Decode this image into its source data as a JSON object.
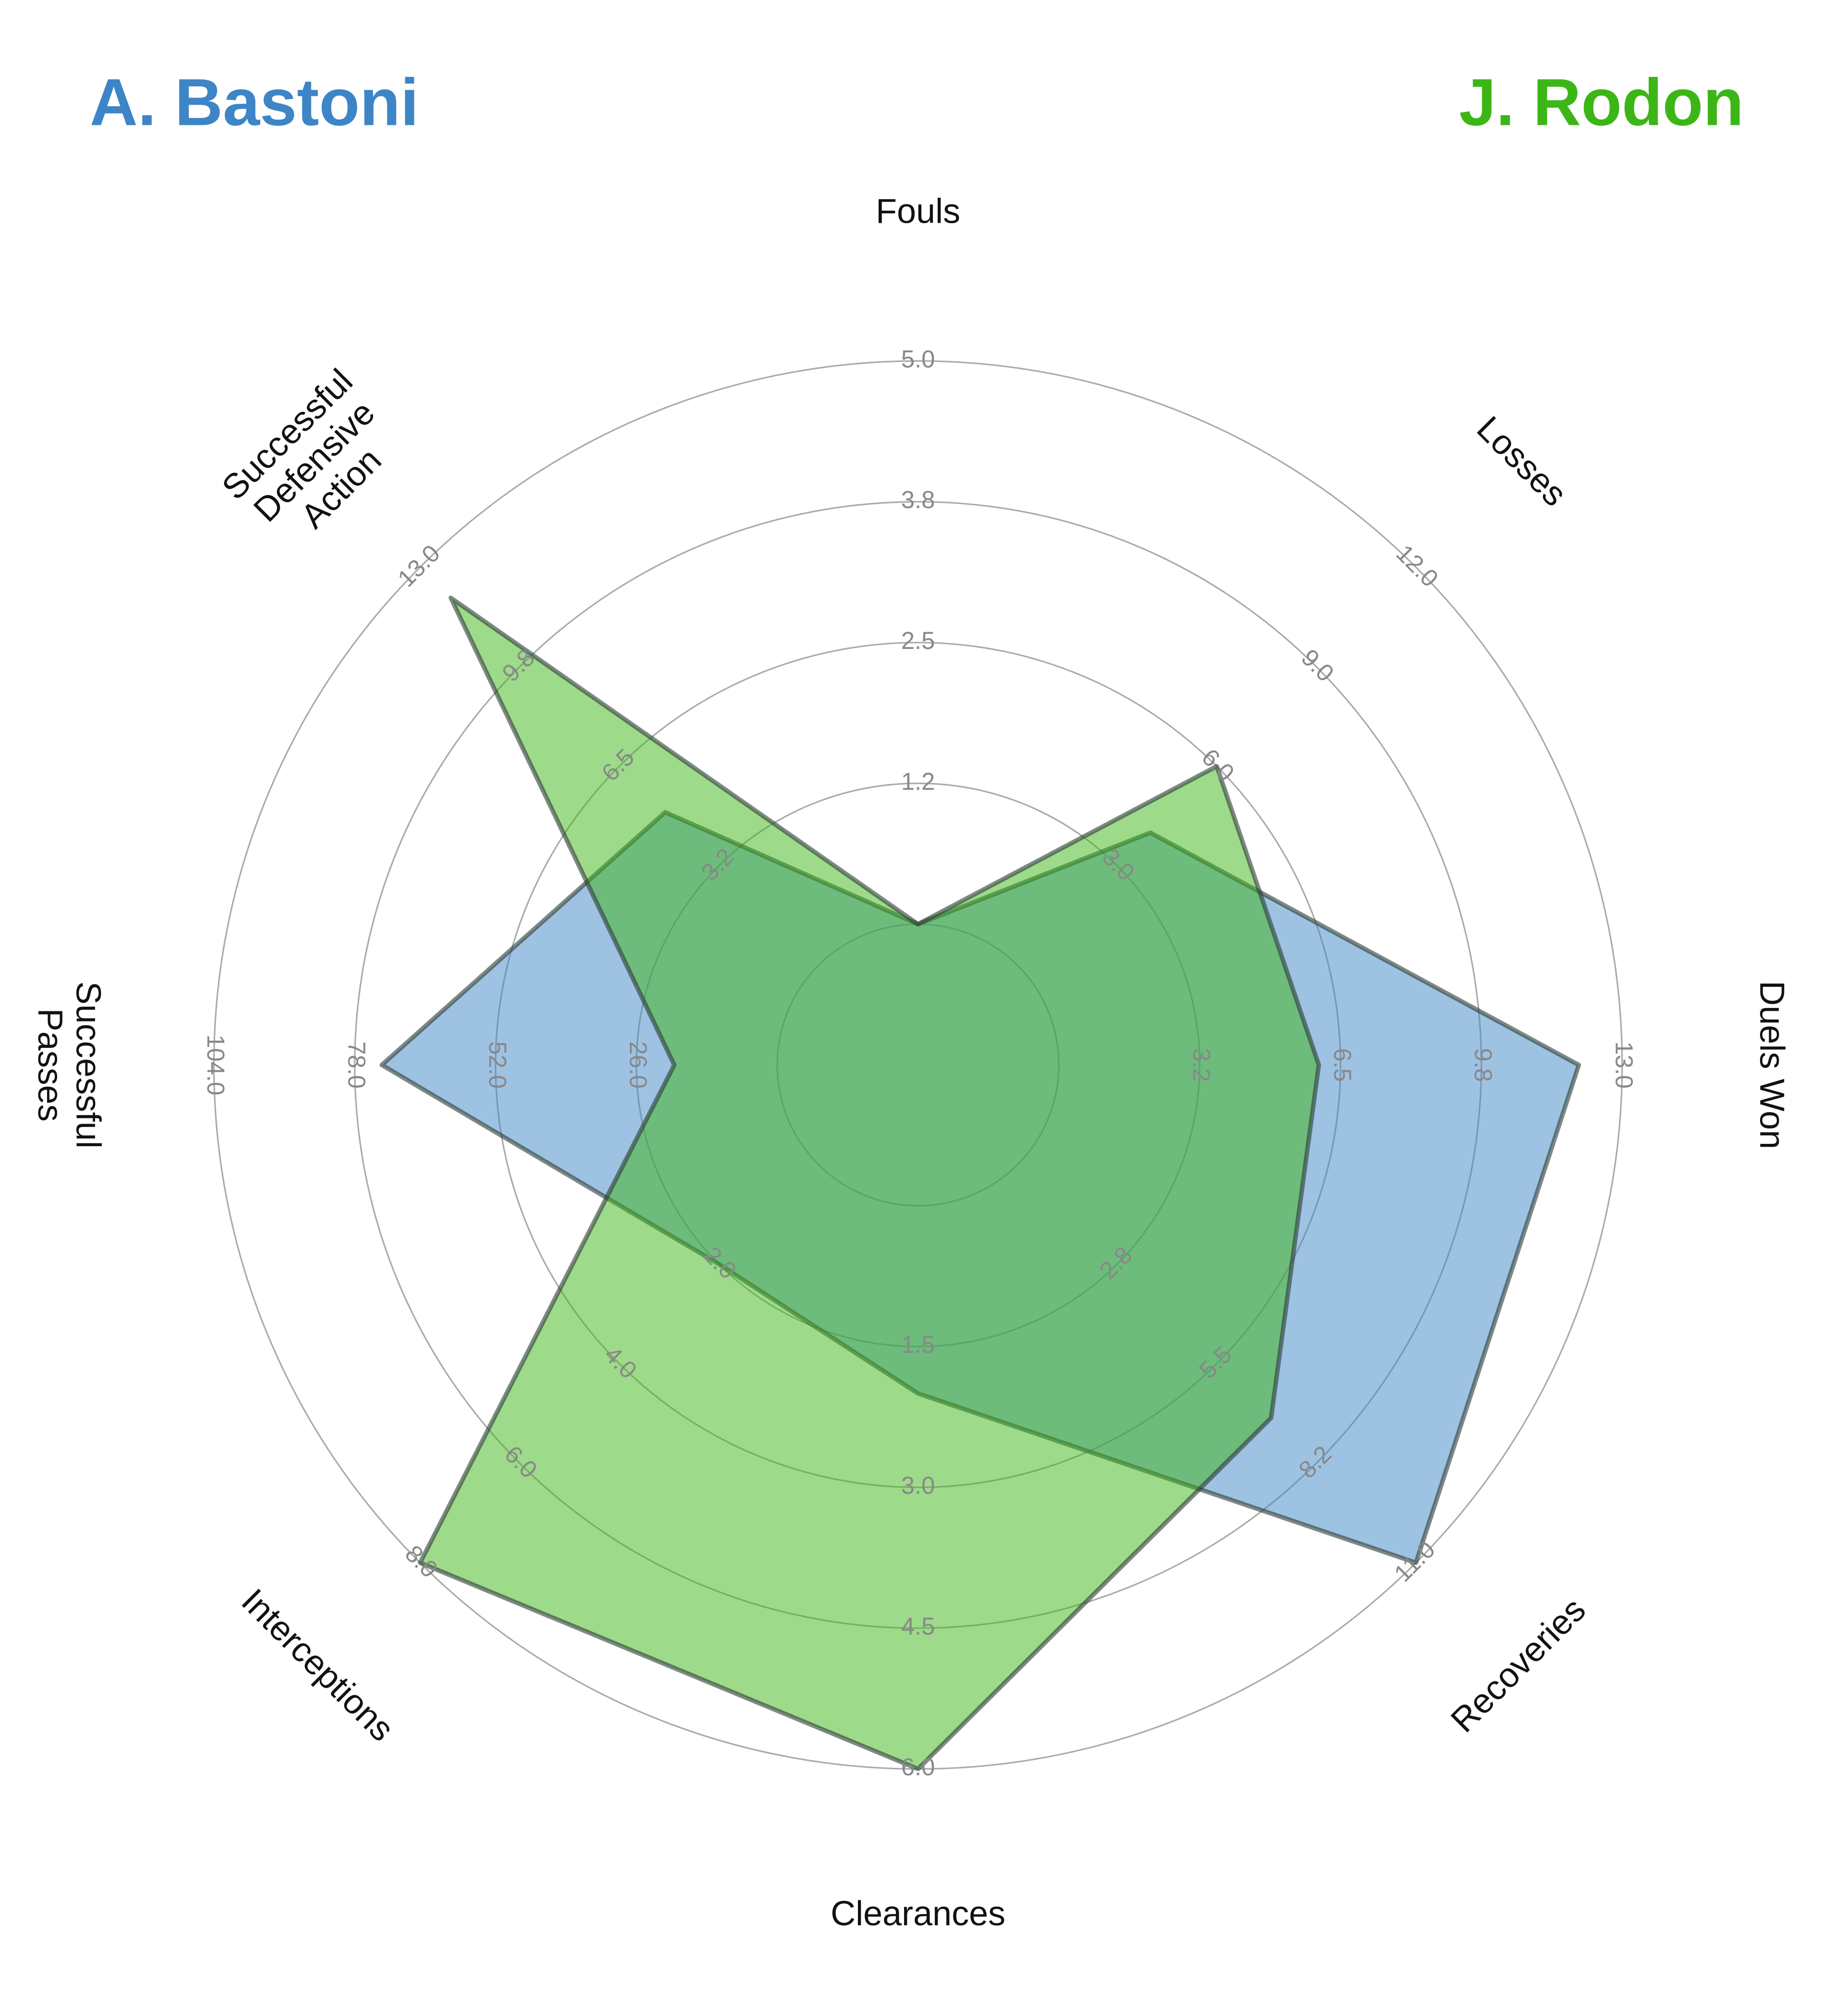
{
  "chart_data": {
    "type": "radar",
    "categories": [
      "Fouls",
      "Losses",
      "Duels Won",
      "Recoveries",
      "Clearances",
      "Interceptions",
      "Successful\nPasses",
      "Successful\nDefensive\nAction"
    ],
    "axes": [
      {
        "lim": [
          0,
          5
        ],
        "ticks": [
          {
            "value": 1.25,
            "label": "1.2"
          },
          {
            "value": 2.5,
            "label": "2.5"
          },
          {
            "value": 3.75,
            "label": "3.8"
          },
          {
            "value": 5,
            "label": "5.0"
          }
        ]
      },
      {
        "lim": [
          0,
          12
        ],
        "ticks": [
          {
            "value": 3,
            "label": "3.0"
          },
          {
            "value": 6,
            "label": "6.0"
          },
          {
            "value": 9,
            "label": "9.0"
          },
          {
            "value": 12,
            "label": "12.0"
          }
        ]
      },
      {
        "lim": [
          0,
          13
        ],
        "ticks": [
          {
            "value": 3.25,
            "label": "3.2"
          },
          {
            "value": 6.5,
            "label": "6.5"
          },
          {
            "value": 9.75,
            "label": "9.8"
          },
          {
            "value": 13,
            "label": "13.0"
          }
        ]
      },
      {
        "lim": [
          0,
          11
        ],
        "ticks": [
          {
            "value": 2.75,
            "label": "2.8"
          },
          {
            "value": 5.5,
            "label": "5.5"
          },
          {
            "value": 8.25,
            "label": "8.2"
          },
          {
            "value": 11,
            "label": "11.0"
          }
        ]
      },
      {
        "lim": [
          0,
          6
        ],
        "ticks": [
          {
            "value": 1.5,
            "label": "1.5"
          },
          {
            "value": 3,
            "label": "3.0"
          },
          {
            "value": 4.5,
            "label": "4.5"
          },
          {
            "value": 6,
            "label": "6.0"
          }
        ]
      },
      {
        "lim": [
          0,
          8
        ],
        "ticks": [
          {
            "value": 2,
            "label": "2.0"
          },
          {
            "value": 4,
            "label": "4.0"
          },
          {
            "value": 6,
            "label": "6.0"
          },
          {
            "value": 8,
            "label": "8.0"
          }
        ]
      },
      {
        "lim": [
          0,
          104
        ],
        "ticks": [
          {
            "value": 26,
            "label": "26.0"
          },
          {
            "value": 52,
            "label": "52.0"
          },
          {
            "value": 78,
            "label": "78.0"
          },
          {
            "value": 104,
            "label": "104.0"
          }
        ]
      },
      {
        "lim": [
          0,
          13
        ],
        "ticks": [
          {
            "value": 3.25,
            "label": "3.2"
          },
          {
            "value": 6.5,
            "label": "6.5"
          },
          {
            "value": 9.75,
            "label": "9.8"
          },
          {
            "value": 13,
            "label": "13.0"
          }
        ]
      }
    ],
    "series": [
      {
        "name": "A. Bastoni",
        "color": "#3d85c6",
        "values": [
          0,
          4,
          12,
          11,
          2,
          2,
          73,
          5
        ]
      },
      {
        "name": "J. Rodon",
        "color": "#3cb616",
        "values": [
          0,
          6,
          6,
          7,
          6,
          8,
          19,
          12
        ]
      }
    ]
  }
}
